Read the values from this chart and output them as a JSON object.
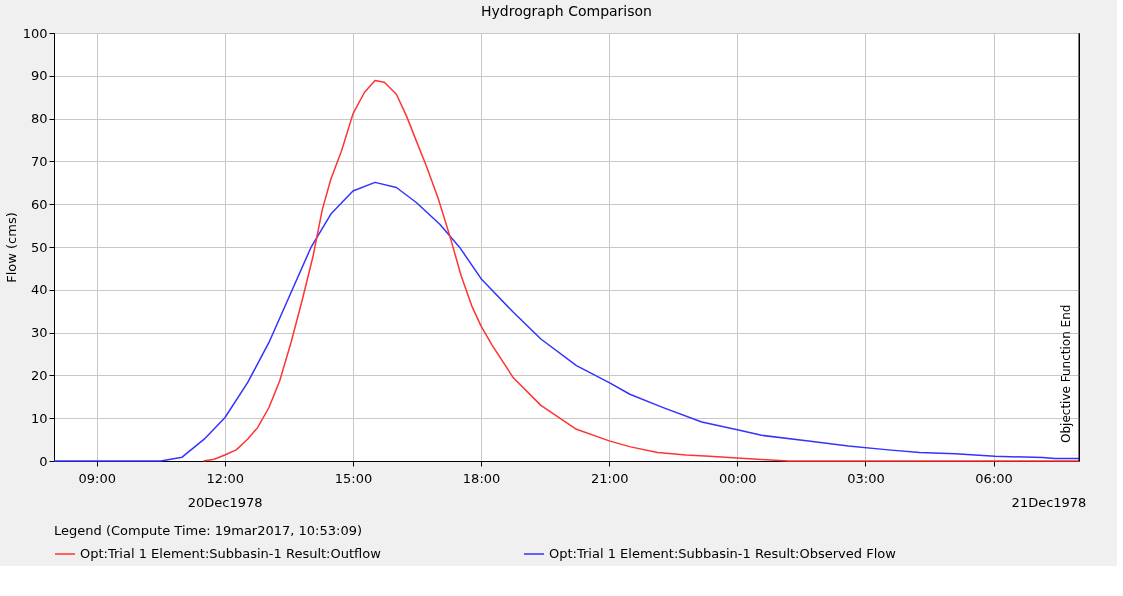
{
  "chart_data": {
    "type": "line",
    "title": "Hydrograph Comparison",
    "ylabel": "Flow (cms)",
    "legend_title": "Legend (Compute Time: 19mar2017, 10:53:09)",
    "legend": "bottom",
    "grid": true,
    "marker": "none",
    "line_style": "solid",
    "xlim": [
      "1978-12-20T08:00",
      "1978-12-21T08:00"
    ],
    "ylim": [
      0,
      100
    ],
    "xticks": [
      {
        "value": "1978-12-20T09:00",
        "label": "09:00"
      },
      {
        "value": "1978-12-20T12:00",
        "label": "12:00"
      },
      {
        "value": "1978-12-20T15:00",
        "label": "15:00"
      },
      {
        "value": "1978-12-20T18:00",
        "label": "18:00"
      },
      {
        "value": "1978-12-20T21:00",
        "label": "21:00"
      },
      {
        "value": "1978-12-21T00:00",
        "label": "00:00"
      },
      {
        "value": "1978-12-21T03:00",
        "label": "03:00"
      },
      {
        "value": "1978-12-21T06:00",
        "label": "06:00"
      }
    ],
    "yticks": [
      0,
      10,
      20,
      30,
      40,
      50,
      60,
      70,
      80,
      90,
      100
    ],
    "annotations": [
      "20Dec1978",
      "21Dec1978"
    ],
    "ref_lines": [
      {
        "axis": "x",
        "value": "1978-12-21T08:00",
        "label": "Objective Function End",
        "color": "#000000"
      }
    ],
    "series": [
      {
        "name": "Opt:Trial 1 Element:Subbasin-1 Result:Outflow",
        "color": "#ff3333",
        "x": [
          "1978-12-20T11:30",
          "1978-12-20T11:45",
          "1978-12-20T12:00",
          "1978-12-20T12:16",
          "1978-12-20T12:32",
          "1978-12-20T12:46",
          "1978-12-20T13:02",
          "1978-12-20T13:17",
          "1978-12-20T13:33",
          "1978-12-20T13:49",
          "1978-12-20T14:04",
          "1978-12-20T14:17",
          "1978-12-20T14:29",
          "1978-12-20T14:44",
          "1978-12-20T15:00",
          "1978-12-20T15:16",
          "1978-12-20T15:31",
          "1978-12-20T15:44",
          "1978-12-20T16:01",
          "1978-12-20T16:15",
          "1978-12-20T16:29",
          "1978-12-20T16:43",
          "1978-12-20T17:00",
          "1978-12-20T17:16",
          "1978-12-20T17:32",
          "1978-12-20T17:47",
          "1978-12-20T18:00",
          "1978-12-20T18:15",
          "1978-12-20T18:45",
          "1978-12-20T19:24",
          "1978-12-20T20:14",
          "1978-12-20T21:00",
          "1978-12-20T21:30",
          "1978-12-20T22:08",
          "1978-12-20T22:48",
          "1978-12-20T23:21",
          "1978-12-21T00:00",
          "1978-12-21T00:28",
          "1978-12-21T01:12",
          "1978-12-21T08:00"
        ],
        "values": [
          0,
          0.4,
          1.4,
          2.6,
          5.1,
          7.8,
          12.5,
          18.7,
          27.7,
          37.8,
          47.9,
          58.8,
          65.9,
          72.5,
          81.1,
          86.1,
          88.9,
          88.5,
          85.7,
          80.7,
          74.8,
          69.0,
          61.2,
          52.6,
          43.3,
          36.2,
          31.5,
          27.2,
          19.5,
          13.0,
          7.4,
          4.7,
          3.3,
          2.0,
          1.4,
          1.1,
          0.7,
          0.4,
          0,
          0
        ]
      },
      {
        "name": "Opt:Trial 1 Element:Subbasin-1 Result:Observed Flow",
        "color": "#3333ff",
        "x": [
          "1978-12-20T08:00",
          "1978-12-20T10:30",
          "1978-12-20T11:00",
          "1978-12-20T11:31",
          "1978-12-20T12:00",
          "1978-12-20T12:32",
          "1978-12-20T13:02",
          "1978-12-20T13:31",
          "1978-12-20T14:01",
          "1978-12-20T14:29",
          "1978-12-20T15:00",
          "1978-12-20T15:31",
          "1978-12-20T16:01",
          "1978-12-20T16:29",
          "1978-12-20T17:02",
          "1978-12-20T17:30",
          "1978-12-20T18:00",
          "1978-12-20T18:45",
          "1978-12-20T19:24",
          "1978-12-20T20:14",
          "1978-12-20T21:00",
          "1978-12-20T21:29",
          "1978-12-20T22:14",
          "1978-12-20T23:10",
          "1978-12-21T00:00",
          "1978-12-21T00:34",
          "1978-12-21T01:40",
          "1978-12-21T02:36",
          "1978-12-21T03:32",
          "1978-12-21T04:16",
          "1978-12-21T05:06",
          "1978-12-21T06:02",
          "1978-12-21T07:09",
          "1978-12-21T07:26",
          "1978-12-21T08:00"
        ],
        "values": [
          0,
          0,
          0.9,
          5.1,
          10.1,
          18.3,
          27.7,
          38.6,
          49.9,
          57.7,
          63.1,
          65.1,
          63.9,
          60.4,
          55.3,
          49.9,
          42.6,
          34.8,
          28.5,
          22.3,
          18.3,
          15.6,
          12.6,
          9.1,
          7.3,
          6.0,
          4.7,
          3.5,
          2.6,
          2.0,
          1.7,
          1.1,
          0.8,
          0.6,
          0.6
        ]
      }
    ]
  }
}
